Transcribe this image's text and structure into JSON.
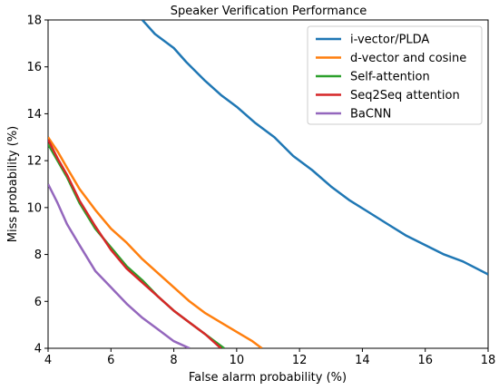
{
  "chart_data": {
    "type": "line",
    "title": "Speaker Verification Performance",
    "xlabel": "False alarm probability (%)",
    "ylabel": "Miss probability (%)",
    "xlim": [
      4,
      18
    ],
    "ylim": [
      4,
      18
    ],
    "xticks": [
      4,
      6,
      8,
      10,
      12,
      14,
      16,
      18
    ],
    "yticks": [
      4,
      6,
      8,
      10,
      12,
      14,
      16,
      18
    ],
    "grid": false,
    "legend_position": "top-right",
    "series": [
      {
        "name": "i-vector/PLDA",
        "color": "#1f77b4",
        "x": [
          7.0,
          7.4,
          8.0,
          8.4,
          9.0,
          9.5,
          10.0,
          10.6,
          11.2,
          11.8,
          12.4,
          13.0,
          13.6,
          14.2,
          14.8,
          15.4,
          16.0,
          16.6,
          17.2,
          18.0
        ],
        "y": [
          18.0,
          17.4,
          16.8,
          16.2,
          15.4,
          14.8,
          14.3,
          13.6,
          13.0,
          12.2,
          11.6,
          10.9,
          10.3,
          9.8,
          9.3,
          8.8,
          8.4,
          8.0,
          7.7,
          7.15
        ]
      },
      {
        "name": "d-vector and cosine",
        "color": "#ff7f0e",
        "x": [
          4.0,
          4.3,
          4.6,
          5.0,
          5.5,
          6.0,
          6.5,
          7.0,
          7.5,
          8.0,
          8.5,
          9.0,
          9.5,
          10.0,
          10.5,
          10.8
        ],
        "y": [
          13.0,
          12.4,
          11.7,
          10.8,
          9.9,
          9.1,
          8.5,
          7.8,
          7.2,
          6.6,
          6.0,
          5.5,
          5.1,
          4.7,
          4.3,
          4.0
        ]
      },
      {
        "name": "Self-attention",
        "color": "#2ca02c",
        "x": [
          4.0,
          4.3,
          4.6,
          5.0,
          5.5,
          6.0,
          6.5,
          7.0,
          7.5,
          8.0,
          8.5,
          9.0,
          9.6
        ],
        "y": [
          12.7,
          12.0,
          11.3,
          10.2,
          9.1,
          8.3,
          7.5,
          6.9,
          6.2,
          5.6,
          5.1,
          4.6,
          4.0
        ]
      },
      {
        "name": "Seq2Seq attention",
        "color": "#d62728",
        "x": [
          4.0,
          4.3,
          4.6,
          5.0,
          5.5,
          6.0,
          6.5,
          7.0,
          7.5,
          8.0,
          8.5,
          9.0,
          9.5
        ],
        "y": [
          12.9,
          12.1,
          11.4,
          10.3,
          9.2,
          8.2,
          7.4,
          6.8,
          6.2,
          5.6,
          5.1,
          4.6,
          4.0
        ]
      },
      {
        "name": "BaCNN",
        "color": "#9467bd",
        "x": [
          4.0,
          4.3,
          4.6,
          5.0,
          5.5,
          6.0,
          6.5,
          7.0,
          7.5,
          8.0,
          8.5
        ],
        "y": [
          11.0,
          10.2,
          9.3,
          8.4,
          7.3,
          6.6,
          5.9,
          5.3,
          4.8,
          4.3,
          4.0
        ]
      }
    ]
  }
}
